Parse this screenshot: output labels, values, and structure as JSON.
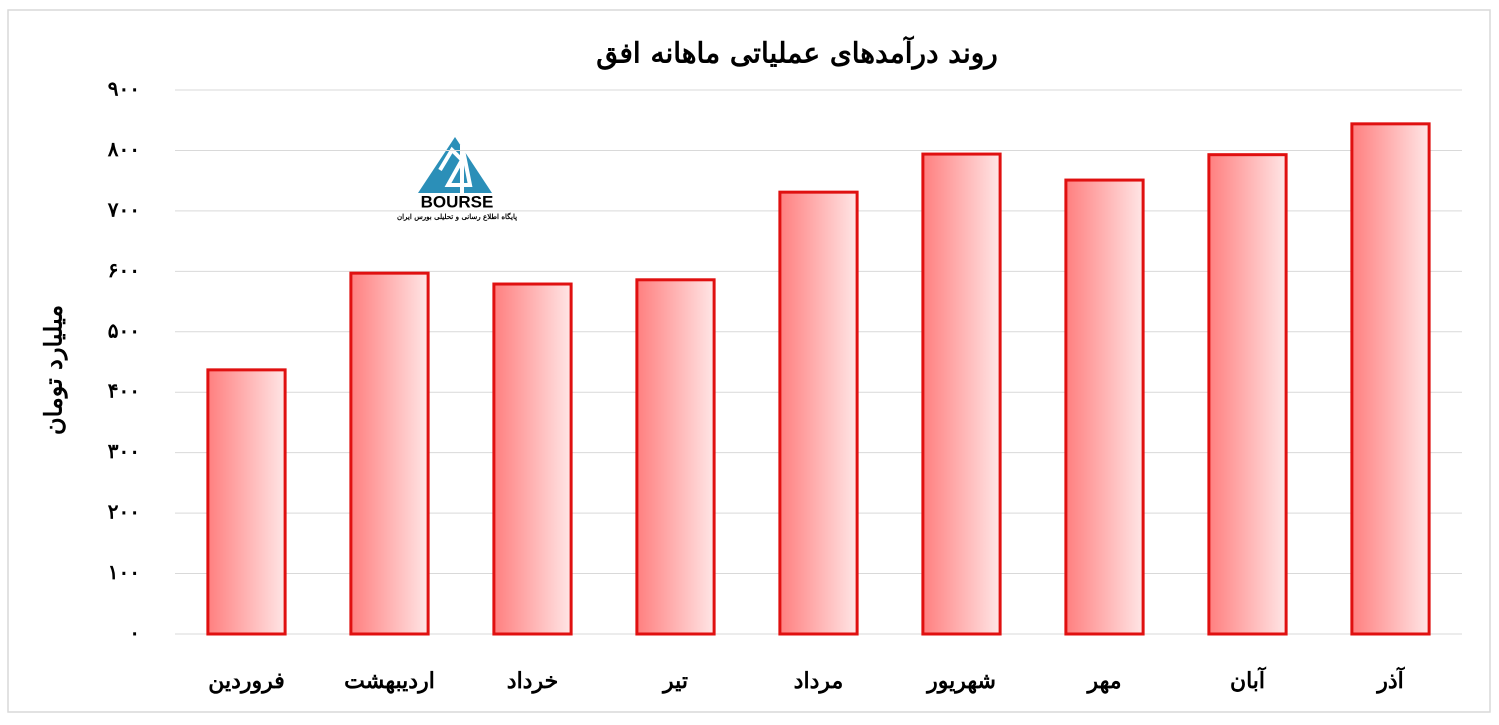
{
  "chart_data": {
    "type": "bar",
    "title": "روند درآمدهای عملیاتی ماهانه افق",
    "y_label": "میلیارد تومان",
    "categories": [
      "فروردین",
      "اردیبهشت",
      "خرداد",
      "تیر",
      "مرداد",
      "شهریور",
      "مهر",
      "آبان",
      "آذر"
    ],
    "values": [
      437,
      597,
      579,
      586,
      731,
      794,
      751,
      793,
      844
    ],
    "color": "#e01010",
    "ylim": [
      0,
      900
    ],
    "yticks": [
      {
        "value": 0,
        "label": "۰"
      },
      {
        "value": 100,
        "label": "۱۰۰"
      },
      {
        "value": 200,
        "label": "۲۰۰"
      },
      {
        "value": 300,
        "label": "۳۰۰"
      },
      {
        "value": 400,
        "label": "۴۰۰"
      },
      {
        "value": 500,
        "label": "۵۰۰"
      },
      {
        "value": 600,
        "label": "۶۰۰"
      },
      {
        "value": 700,
        "label": "۷۰۰"
      },
      {
        "value": 800,
        "label": "۸۰۰"
      },
      {
        "value": 900,
        "label": "۹۰۰"
      }
    ],
    "grid": true
  },
  "logo": {
    "name": "BOURSE",
    "tagline": "پایگاه اطلاع رسانی و تحلیلی بورس ایران"
  }
}
